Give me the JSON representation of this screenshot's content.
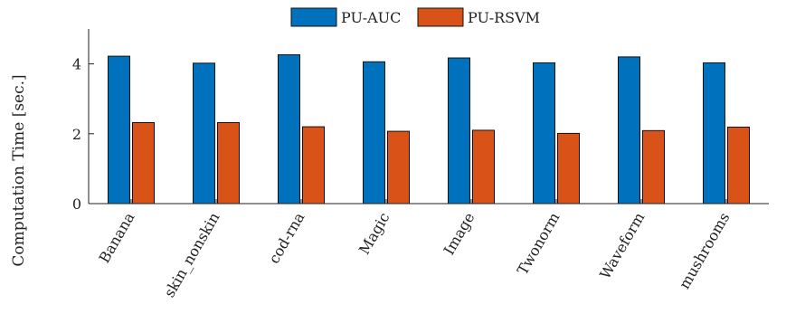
{
  "chart_data": {
    "type": "bar",
    "categories": [
      "Banana",
      "skin_nonskin",
      "cod-rna",
      "Magic",
      "Image",
      "Twonorm",
      "Waveform",
      "mushrooms"
    ],
    "series": [
      {
        "name": "PU-AUC",
        "color": "#0072BD",
        "values": [
          4.22,
          4.02,
          4.26,
          4.06,
          4.17,
          4.03,
          4.2,
          4.03
        ]
      },
      {
        "name": "PU-RSVM",
        "color": "#D95319",
        "values": [
          2.32,
          2.32,
          2.2,
          2.07,
          2.1,
          2.01,
          2.09,
          2.19
        ]
      }
    ],
    "xlabel": "",
    "ylabel": "Computation Time [sec.]",
    "ylim": [
      0,
      5
    ],
    "yticks": [
      0,
      2,
      4
    ],
    "legend_position": "top-center",
    "grid": false
  }
}
